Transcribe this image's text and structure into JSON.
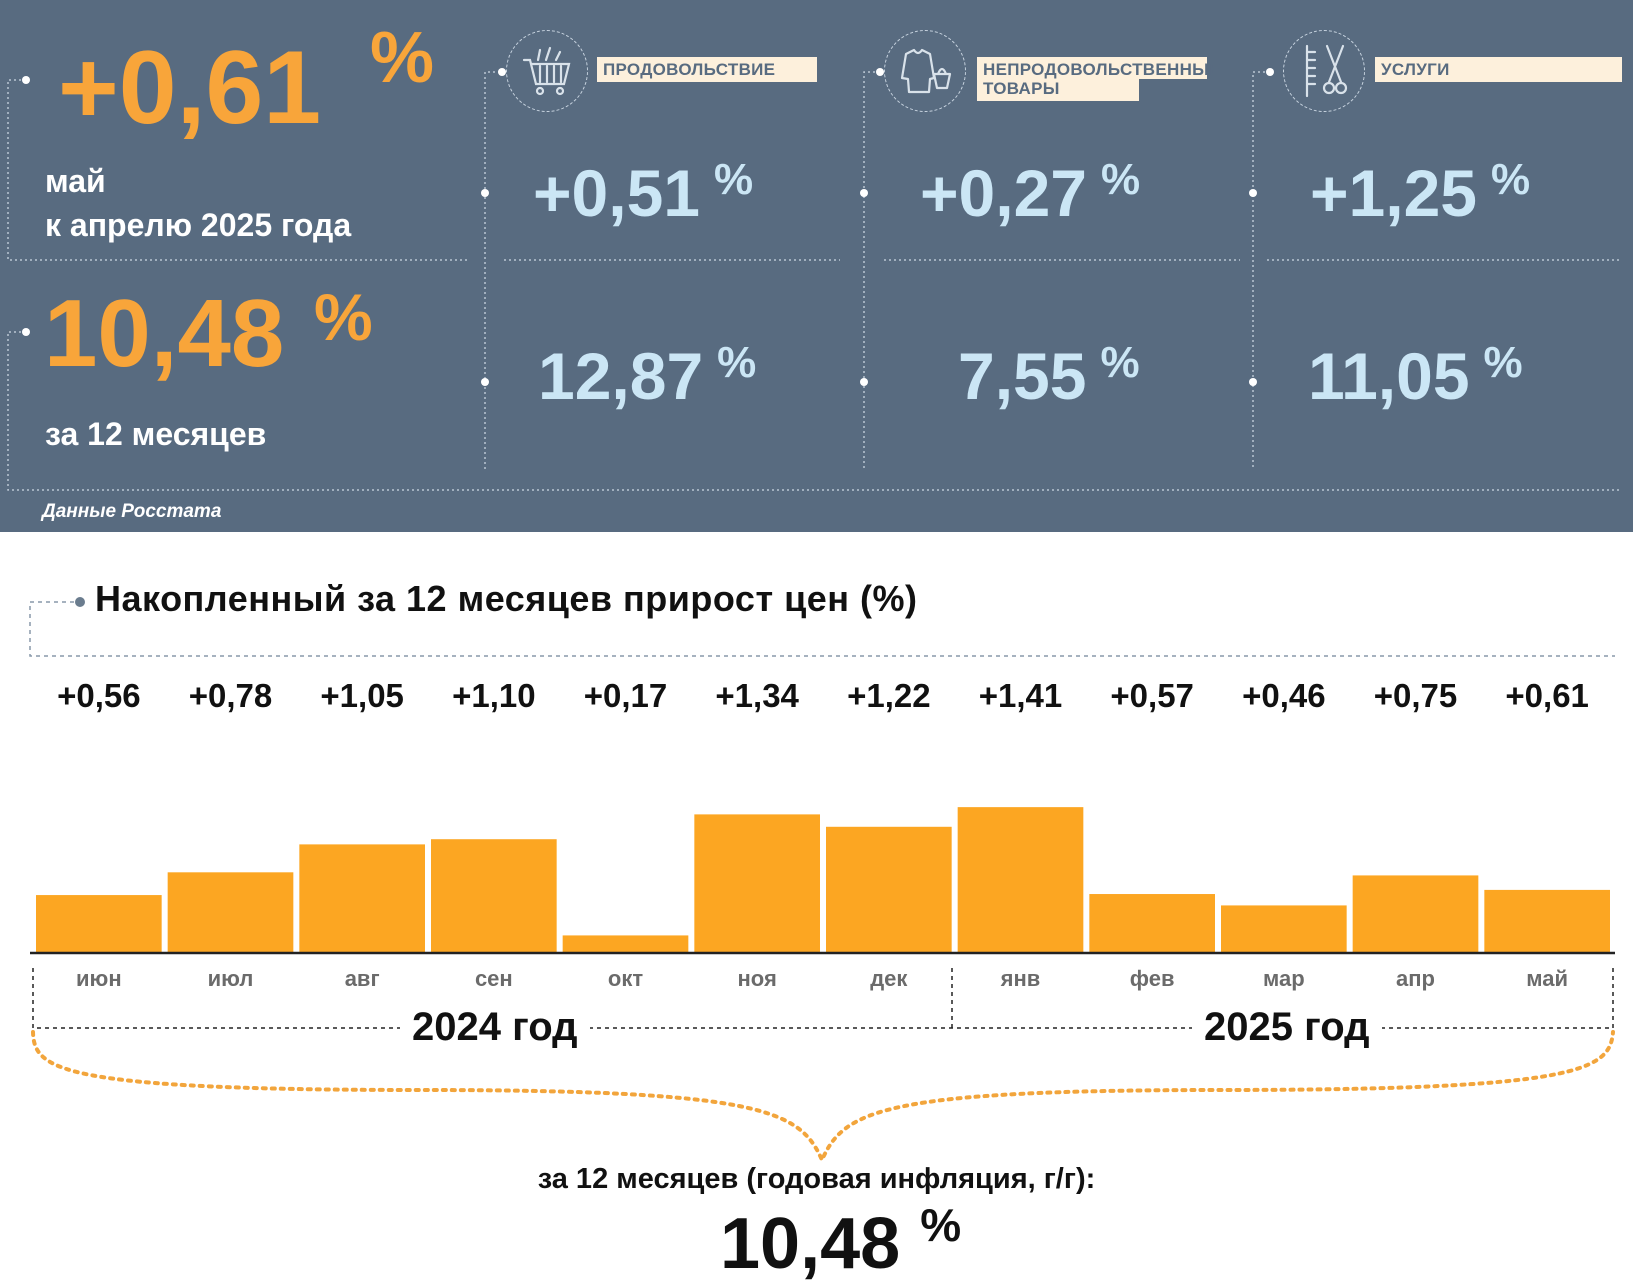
{
  "summary": {
    "monthly_value": "+0,61",
    "monthly_unit": "%",
    "monthly_caption_1": "май",
    "monthly_caption_2": "к апрелю 2025 года",
    "annual_value": "10,48",
    "annual_unit": "%",
    "annual_caption": "за 12 месяцев"
  },
  "categories": [
    {
      "label": "ПРОДОВОЛЬСТВИЕ",
      "icon": "shopping-cart-icon",
      "monthly": "+0,51",
      "annual": "12,87",
      "unit": "%"
    },
    {
      "label": "НЕПРОДОВОЛЬСТВЕННЫЕ ТОВАРЫ",
      "label_line1": "НЕПРОДОВОЛЬСТВЕННЫЕ",
      "label_line2": "ТОВАРЫ",
      "icon": "clothes-bag-icon",
      "monthly": "+0,27",
      "annual": "7,55",
      "unit": "%"
    },
    {
      "label": "УСЛУГИ",
      "icon": "scissors-comb-icon",
      "monthly": "+1,25",
      "annual": "11,05",
      "unit": "%"
    }
  ],
  "source": "Данные Росстата",
  "colors": {
    "panel": "#586b80",
    "accent_orange": "#f8a53a",
    "bar": "#fca622",
    "light_blue": "#cbe6f5"
  },
  "chart_data": {
    "type": "bar",
    "title": "Накопленный за 12 месяцев прирост цен (%)",
    "categories": [
      "июн",
      "июл",
      "авг",
      "сен",
      "окт",
      "ноя",
      "дек",
      "янв",
      "фев",
      "мар",
      "апр",
      "май"
    ],
    "values": [
      0.56,
      0.78,
      1.05,
      1.1,
      0.17,
      1.34,
      1.22,
      1.41,
      0.57,
      0.46,
      0.75,
      0.61
    ],
    "value_labels": [
      "+0,56",
      "+0,78",
      "+1,05",
      "+1,10",
      "+0,17",
      "+1,34",
      "+1,22",
      "+1,41",
      "+0,57",
      "+0,46",
      "+0,75",
      "+0,61"
    ],
    "years": [
      "2024 год",
      "2025 год"
    ],
    "total_caption": "за 12 месяцев (годовая инфляция, г/г):",
    "total_value": "10,48",
    "total_unit": "%",
    "ylim": [
      0,
      1.45
    ],
    "grid": false,
    "legend": "none"
  }
}
